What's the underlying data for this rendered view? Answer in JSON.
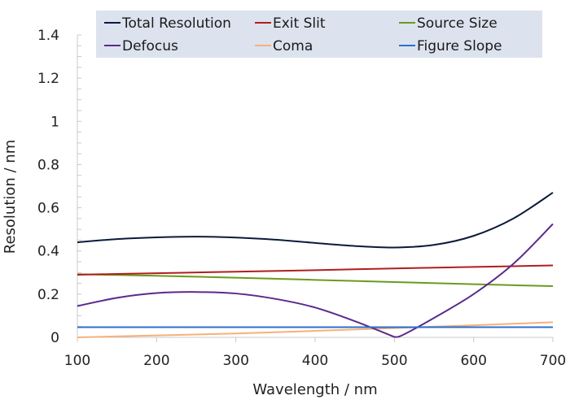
{
  "chart_data": {
    "type": "line",
    "title": "",
    "xlabel": "Wavelength / nm",
    "ylabel": "Resolution / nm",
    "xlim": [
      100,
      700
    ],
    "ylim": [
      0,
      1.4
    ],
    "xticks": [
      "100",
      "200",
      "300",
      "400",
      "500",
      "600",
      "700"
    ],
    "yticks": [
      "0",
      "0.2",
      "0.4",
      "0.6",
      "0.8",
      "1",
      "1.2",
      "1.4"
    ],
    "legend_position": "top",
    "series": [
      {
        "name": "Total Resolution",
        "color": "#0b1a3c",
        "x": [
          100,
          150,
          200,
          250,
          300,
          350,
          400,
          450,
          500,
          550,
          600,
          650,
          700
        ],
        "y": [
          0.44,
          0.455,
          0.463,
          0.466,
          0.462,
          0.452,
          0.437,
          0.423,
          0.416,
          0.428,
          0.47,
          0.55,
          0.67
        ]
      },
      {
        "name": "Exit Slit",
        "color": "#b01e1e",
        "x": [
          100,
          200,
          300,
          400,
          500,
          600,
          700
        ],
        "y": [
          0.29,
          0.297,
          0.304,
          0.311,
          0.319,
          0.326,
          0.333
        ]
      },
      {
        "name": "Source Size",
        "color": "#6b9a1e",
        "x": [
          100,
          200,
          300,
          400,
          500,
          600,
          700
        ],
        "y": [
          0.292,
          0.285,
          0.276,
          0.266,
          0.256,
          0.246,
          0.237
        ]
      },
      {
        "name": "Defocus",
        "color": "#5b2a8c",
        "x": [
          100,
          150,
          200,
          250,
          300,
          350,
          400,
          450,
          500,
          510,
          550,
          600,
          650,
          700
        ],
        "y": [
          0.145,
          0.183,
          0.205,
          0.21,
          0.203,
          0.178,
          0.138,
          0.075,
          0.002,
          0.01,
          0.09,
          0.2,
          0.34,
          0.525
        ]
      },
      {
        "name": "Coma",
        "color": "#f5b17a",
        "x": [
          100,
          200,
          300,
          400,
          500,
          600,
          700
        ],
        "y": [
          0.0,
          0.009,
          0.018,
          0.03,
          0.043,
          0.056,
          0.07
        ]
      },
      {
        "name": "Figure Slope",
        "color": "#2c6fcf",
        "x": [
          100,
          700
        ],
        "y": [
          0.047,
          0.047
        ]
      }
    ]
  }
}
